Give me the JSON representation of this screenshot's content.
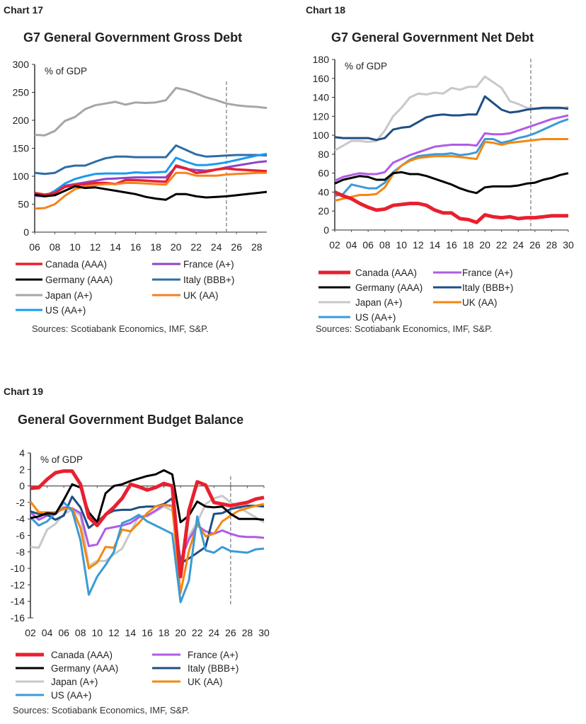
{
  "labels": {
    "c17": "Chart 17",
    "c18": "Chart 18",
    "c19": "Chart 19"
  },
  "chart_data": [
    {
      "type": "line",
      "title": "G7 General Government Gross Debt",
      "unit_label": "% of GDP",
      "x_start": 2006,
      "x_end": 2029,
      "xticks": [
        "06",
        "08",
        "10",
        "12",
        "14",
        "16",
        "18",
        "20",
        "22",
        "24",
        "26",
        "28"
      ],
      "yticks": [
        0,
        50,
        100,
        150,
        200,
        250,
        300
      ],
      "ylim": [
        0,
        300
      ],
      "forecast_line_x": 2025,
      "source": "Sources: Scotiabank Economics, IMF, S&P.",
      "series": [
        {
          "name": "Japan (A+)",
          "color": "#a6a6a6",
          "values": [
            174,
            173,
            181,
            199,
            206,
            220,
            227,
            230,
            233,
            228,
            232,
            231,
            232,
            236,
            258,
            254,
            248,
            241,
            236,
            230,
            227,
            225,
            224,
            222
          ]
        },
        {
          "name": "Italy (BBB+)",
          "color": "#2e6da4",
          "values": [
            106,
            104,
            106,
            116,
            119,
            119,
            126,
            132,
            135,
            135,
            134,
            134,
            134,
            134,
            155,
            147,
            139,
            135,
            136,
            137,
            138,
            138,
            138,
            137
          ]
        },
        {
          "name": "US (AA+)",
          "color": "#1a9af0",
          "values": [
            65,
            64,
            74,
            87,
            95,
            100,
            104,
            105,
            105,
            105,
            107,
            106,
            107,
            108,
            133,
            126,
            120,
            120,
            122,
            125,
            129,
            133,
            137,
            140
          ]
        },
        {
          "name": "France (A+)",
          "color": "#8e44c9",
          "values": [
            65,
            65,
            70,
            83,
            86,
            89,
            92,
            95,
            96,
            97,
            98,
            98,
            98,
            98,
            117,
            113,
            111,
            110,
            112,
            116,
            119,
            122,
            125,
            127
          ]
        },
        {
          "name": "Canada (AAA)",
          "color": "#e8202f",
          "values": [
            70,
            67,
            70,
            81,
            84,
            86,
            88,
            88,
            86,
            93,
            93,
            92,
            91,
            90,
            119,
            114,
            106,
            108,
            112,
            114,
            112,
            111,
            110,
            109
          ]
        },
        {
          "name": "UK (AA)",
          "color": "#f5821f",
          "values": [
            42,
            43,
            50,
            65,
            77,
            82,
            84,
            86,
            86,
            88,
            88,
            87,
            86,
            85,
            106,
            106,
            101,
            101,
            101,
            103,
            104,
            105,
            106,
            106
          ]
        },
        {
          "name": "Germany (AAA)",
          "color": "#000000",
          "values": [
            67,
            64,
            66,
            74,
            82,
            79,
            80,
            77,
            74,
            71,
            68,
            63,
            60,
            58,
            68,
            68,
            64,
            62,
            63,
            64,
            66,
            68,
            70,
            72
          ]
        }
      ],
      "legend": [
        "Canada (AAA)",
        "France (A+)",
        "Germany (AAA)",
        "Italy (BBB+)",
        "Japan (A+)",
        "UK (AA)",
        "US (AA+)"
      ]
    },
    {
      "type": "line",
      "title": "G7 General Government Net Debt",
      "unit_label": "% of GDP",
      "x_start": 2002,
      "x_end": 2030,
      "xticks": [
        "02",
        "04",
        "06",
        "08",
        "10",
        "12",
        "14",
        "16",
        "18",
        "20",
        "22",
        "24",
        "26",
        "28",
        "30"
      ],
      "yticks": [
        0,
        20,
        40,
        60,
        80,
        100,
        120,
        140,
        160,
        180
      ],
      "ylim": [
        0,
        180
      ],
      "forecast_line_x": 2025.5,
      "source": "Sources: Scotiabank Economics, IMF, S&P.",
      "series": [
        {
          "name": "Japan (A+)",
          "color": "#c8c8c8",
          "values": [
            84,
            89,
            94,
            94,
            93,
            94,
            105,
            120,
            129,
            140,
            144,
            143,
            145,
            144,
            150,
            148,
            151,
            151,
            162,
            156,
            150,
            136,
            133,
            129,
            128,
            128,
            128,
            128,
            130
          ]
        },
        {
          "name": "Italy (BBB+)",
          "color": "#1f4e85",
          "values": [
            98,
            97,
            97,
            97,
            97,
            95,
            97,
            106,
            108,
            109,
            114,
            119,
            121,
            122,
            121,
            121,
            122,
            122,
            141,
            134,
            127,
            124,
            125,
            127,
            128,
            129,
            129,
            129,
            128
          ]
        },
        {
          "name": "France (A+)",
          "color": "#b05be6",
          "values": [
            52,
            56,
            58,
            60,
            59,
            59,
            61,
            71,
            75,
            79,
            82,
            85,
            88,
            89,
            90,
            90,
            90,
            89,
            102,
            101,
            101,
            102,
            105,
            108,
            111,
            114,
            117,
            119,
            121
          ]
        },
        {
          "name": "US (AA+)",
          "color": "#3a9bd5",
          "values": [
            36,
            38,
            48,
            46,
            44,
            44,
            50,
            61,
            68,
            74,
            78,
            79,
            80,
            80,
            81,
            79,
            80,
            82,
            96,
            96,
            92,
            94,
            97,
            99,
            102,
            106,
            110,
            114,
            117
          ]
        },
        {
          "name": "UK (AA)",
          "color": "#f5870f",
          "values": [
            31,
            33,
            35,
            37,
            37,
            38,
            45,
            59,
            68,
            73,
            76,
            77,
            78,
            78,
            78,
            77,
            76,
            75,
            93,
            92,
            90,
            92,
            93,
            94,
            95,
            96,
            96,
            96,
            96
          ]
        },
        {
          "name": "Germany (AAA)",
          "color": "#000000",
          "values": [
            49,
            53,
            55,
            57,
            56,
            53,
            53,
            60,
            61,
            59,
            59,
            57,
            54,
            51,
            48,
            44,
            41,
            39,
            45,
            46,
            46,
            46,
            47,
            49,
            50,
            53,
            55,
            58,
            60
          ]
        },
        {
          "name": "Canada (AAA)",
          "color": "#e8202f",
          "values": [
            40,
            36,
            33,
            28,
            24,
            21,
            22,
            26,
            27,
            28,
            28,
            26,
            21,
            18,
            18,
            12,
            11,
            8,
            16,
            14,
            13,
            14,
            12,
            13,
            13,
            14,
            15,
            15,
            15
          ]
        }
      ],
      "legend": [
        "Canada (AAA)",
        "France (A+)",
        "Germany (AAA)",
        "Italy (BBB+)",
        "Japan (A+)",
        "UK (AA)",
        "US (AA+)"
      ]
    },
    {
      "type": "line",
      "title": "General Government Budget Balance",
      "unit_label": "% of GDP",
      "x_start": 2002,
      "x_end": 2030,
      "xticks": [
        "02",
        "04",
        "06",
        "08",
        "10",
        "12",
        "14",
        "16",
        "18",
        "20",
        "22",
        "24",
        "26",
        "28",
        "30"
      ],
      "yticks": [
        -16,
        -14,
        -12,
        -10,
        -8,
        -6,
        -4,
        -2,
        0,
        2,
        4
      ],
      "ylim": [
        -16,
        4
      ],
      "forecast_line_x": 2026,
      "source": "Sources: Scotiabank Economics, IMF, S&P.",
      "series": [
        {
          "name": "Japan (A+)",
          "color": "#c8c8c8",
          "values": [
            -7.4,
            -7.5,
            -5.3,
            -4.6,
            -3.4,
            -2.9,
            -3.6,
            -9.7,
            -9.1,
            -9.1,
            -8.3,
            -7.6,
            -5.6,
            -3.7,
            -3.7,
            -3.1,
            -2.5,
            -3.0,
            -9.1,
            -6.1,
            -4.4,
            -2.2,
            -1.5,
            -1.2,
            -2,
            -2.6,
            -3.2,
            -3.8,
            -4.4
          ]
        },
        {
          "name": "France (A+)",
          "color": "#b05be6",
          "values": [
            -3.2,
            -4.1,
            -3.6,
            -3.4,
            -2.6,
            -2.7,
            -3.3,
            -7.3,
            -7.1,
            -5.2,
            -5.0,
            -4.8,
            -4.5,
            -3.8,
            -3.6,
            -3.0,
            -2.3,
            -2.4,
            -9,
            -6.5,
            -4.8,
            -5.5,
            -5.8,
            -5.4,
            -5.8,
            -6.1,
            -6.2,
            -6.2,
            -6.3
          ]
        },
        {
          "name": "Italy (BBB+)",
          "color": "#1f4e85",
          "values": [
            -3.1,
            -3.4,
            -3.5,
            -4.1,
            -3.6,
            -1.3,
            -2.6,
            -5.1,
            -4.3,
            -3.5,
            -3,
            -2.9,
            -2.9,
            -2.6,
            -2.5,
            -2.5,
            -2.2,
            -1.5,
            -9.4,
            -8.8,
            -8.1,
            -7.4,
            -3.4,
            -3.3,
            -2.8,
            -2.6,
            -2.4,
            -2.4,
            -2.5
          ]
        },
        {
          "name": "UK (AA)",
          "color": "#f5870f",
          "values": [
            -1.9,
            -3.2,
            -3.2,
            -3.2,
            -2.8,
            -2.7,
            -5.1,
            -10,
            -9.3,
            -7.4,
            -7.5,
            -5.3,
            -5.5,
            -4.5,
            -3.3,
            -2.5,
            -2.3,
            -2.5,
            -13,
            -7.9,
            -4.6,
            -6.1,
            -5.8,
            -4.3,
            -3.6,
            -3,
            -2.7,
            -2.4,
            -2.2
          ]
        },
        {
          "name": "US (AA+)",
          "color": "#3a9bd5",
          "values": [
            -3.8,
            -4.8,
            -4.3,
            -3.3,
            -2,
            -3,
            -6.6,
            -13.2,
            -11,
            -9.6,
            -8,
            -4.5,
            -4.1,
            -3.5,
            -4.3,
            -4.8,
            -5.3,
            -5.8,
            -14.1,
            -11.5,
            -3.7,
            -7.8,
            -8.1,
            -7.4,
            -7.9,
            -8,
            -8.1,
            -7.7,
            -7.6
          ]
        },
        {
          "name": "Germany (AAA)",
          "color": "#000000",
          "values": [
            -3.9,
            -3.7,
            -3.3,
            -3.4,
            -1.7,
            0.2,
            -0.2,
            -3.2,
            -4.4,
            -0.9,
            0,
            0.2,
            0.6,
            0.9,
            1.2,
            1.4,
            1.9,
            1.4,
            -4.4,
            -3.6,
            -1.9,
            -2.5,
            -2.6,
            -2.5,
            -3.4,
            -4,
            -4,
            -4,
            -4.1
          ]
        },
        {
          "name": "Canada (AAA)",
          "color": "#e8202f",
          "values": [
            -0.3,
            -0.2,
            0.8,
            1.6,
            1.8,
            1.8,
            0.2,
            -3.8,
            -4.8,
            -3.5,
            -2.6,
            -1.5,
            0.2,
            -0.1,
            -0.5,
            -0.2,
            0.3,
            0,
            -11,
            -3,
            0.5,
            0.1,
            -2,
            -2.2,
            -2.4,
            -2.2,
            -2,
            -1.6,
            -1.4
          ]
        }
      ],
      "legend": [
        "Canada (AAA)",
        "France (A+)",
        "Germany (AAA)",
        "Italy (BBB+)",
        "Japan (A+)",
        "UK (AA)",
        "US (AA+)"
      ]
    }
  ]
}
